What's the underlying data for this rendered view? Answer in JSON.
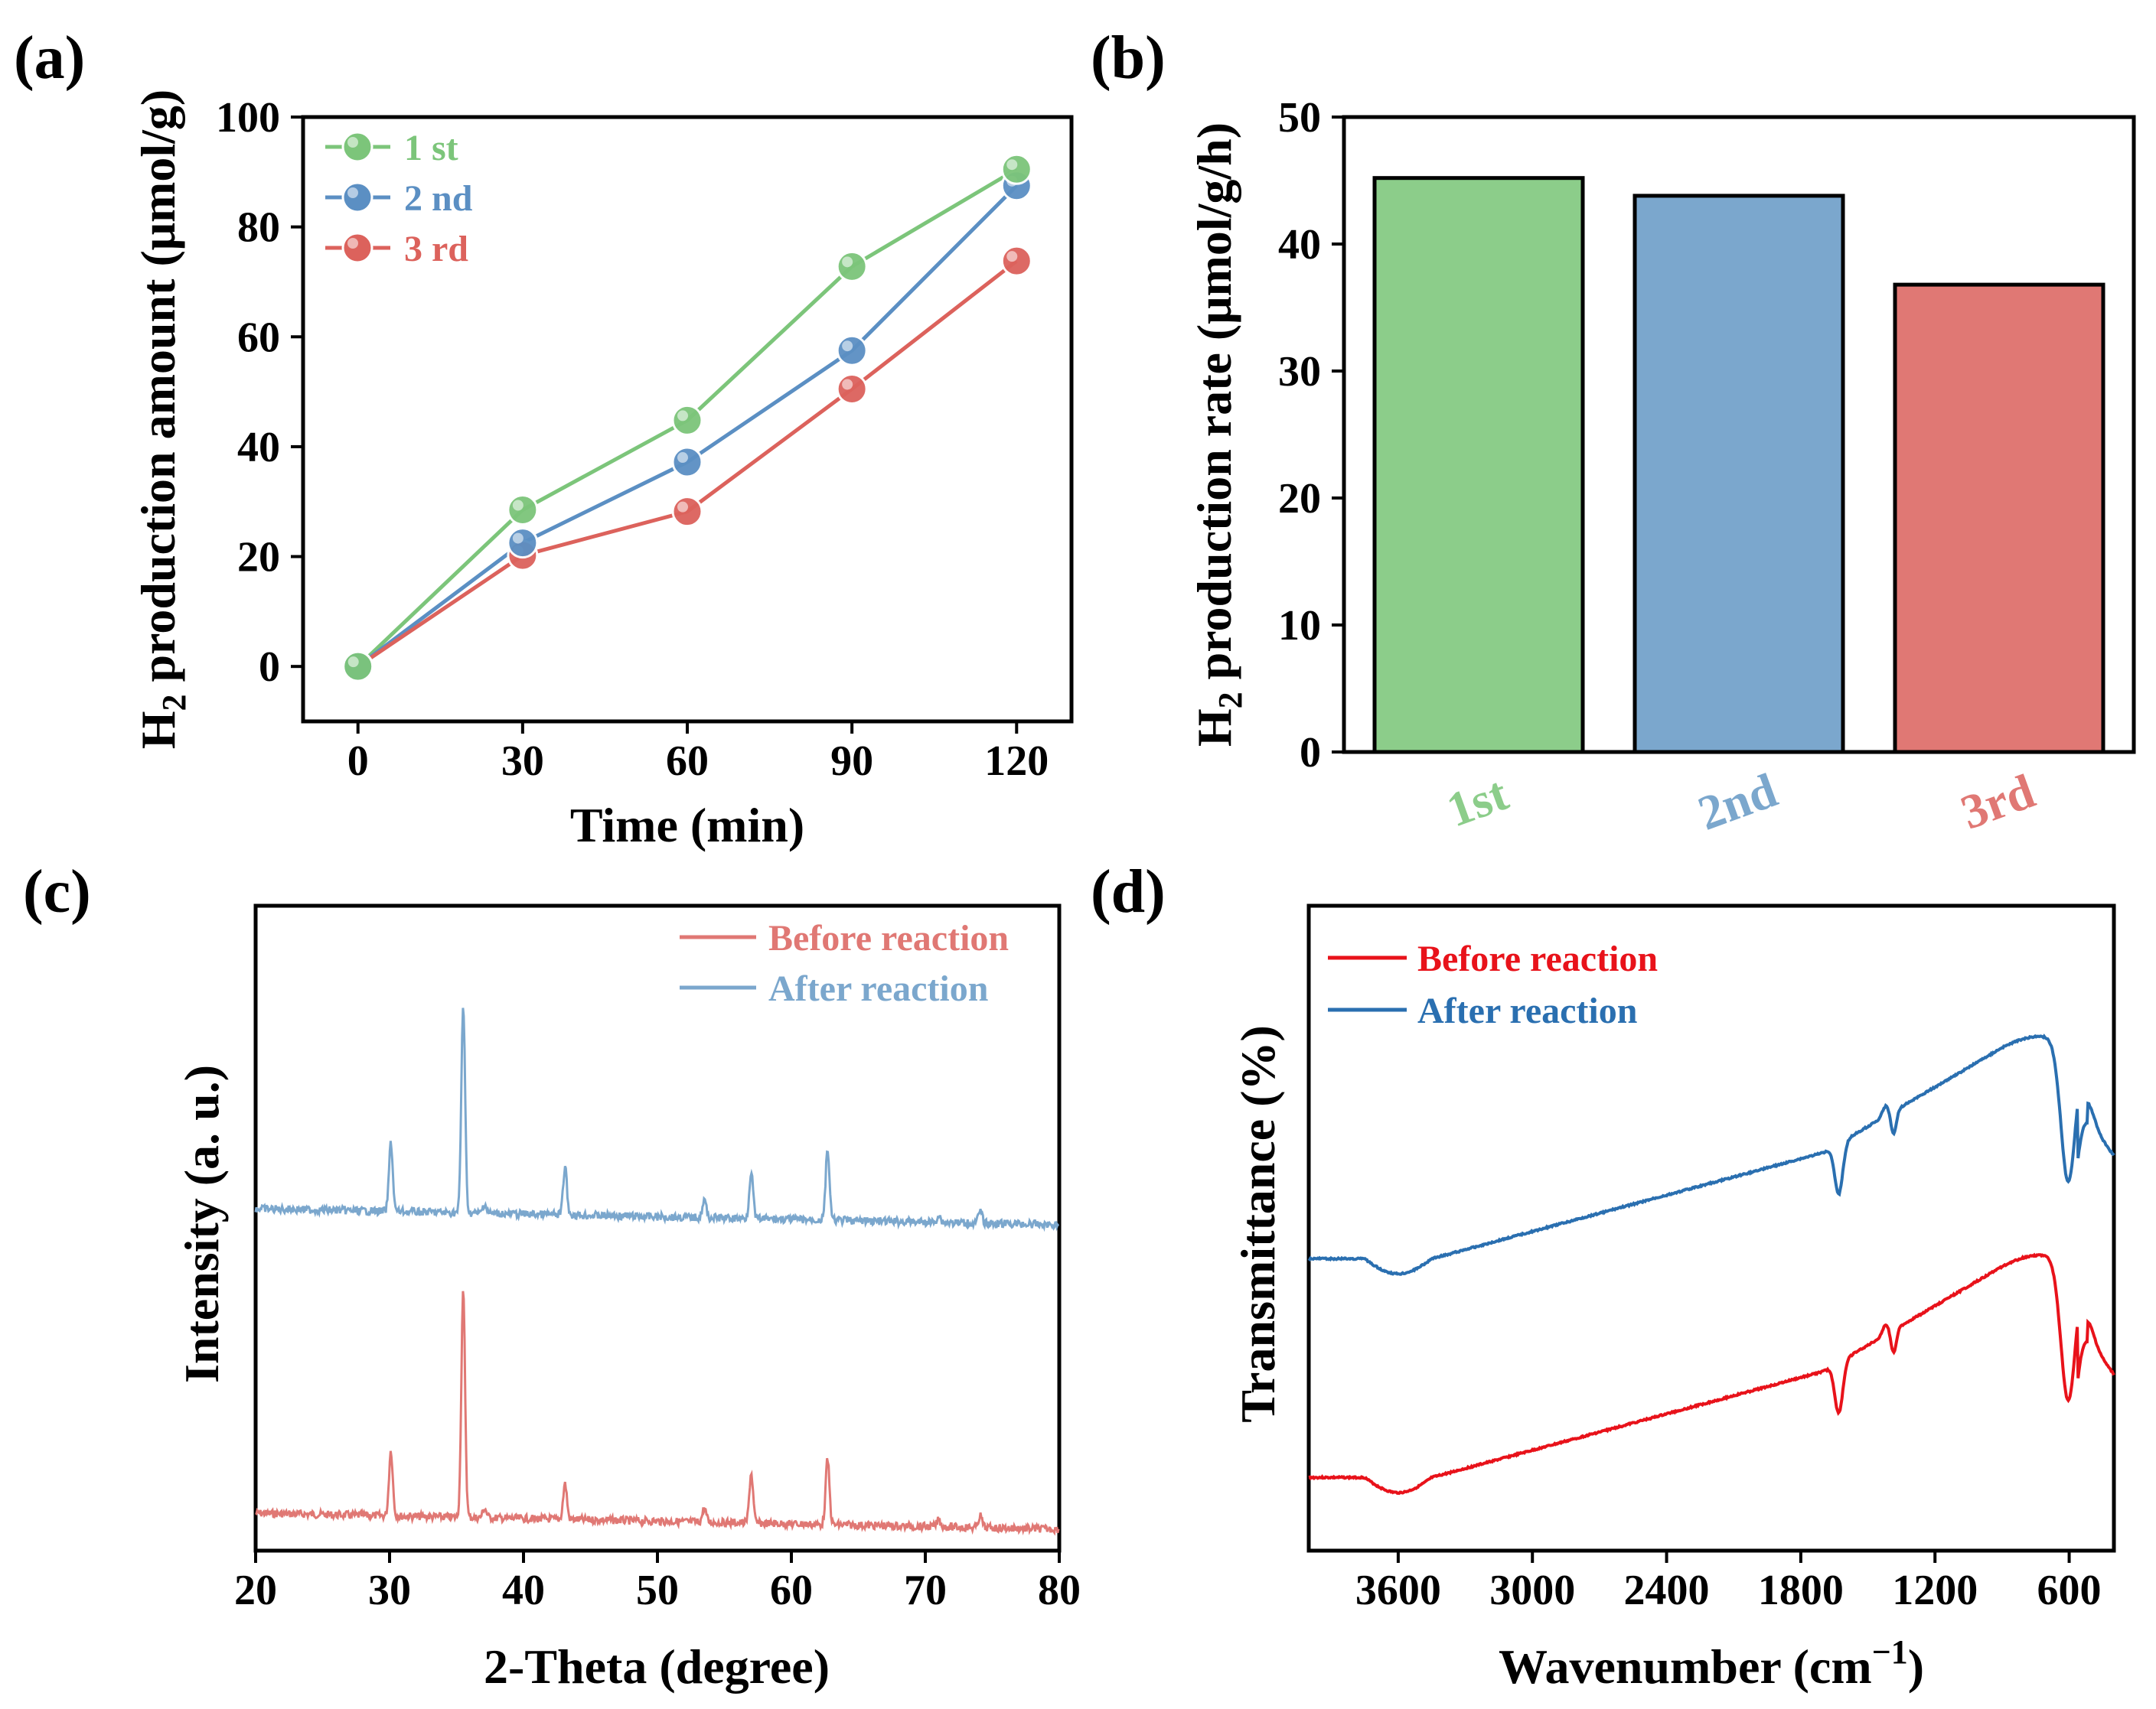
{
  "chart_data": [
    {
      "panel": "(a)",
      "type": "line",
      "xlabel": "Time (min)",
      "ylabel_main": "H",
      "ylabel_sub": "2",
      "ylabel_rest": " production amount (μmol/g)",
      "x": [
        0,
        30,
        60,
        90,
        120
      ],
      "xlim": [
        -10,
        130
      ],
      "ylim": [
        -10,
        100
      ],
      "xticks": [
        0,
        30,
        60,
        90,
        120
      ],
      "yticks": [
        0,
        20,
        40,
        60,
        80,
        100
      ],
      "legend_position": "top-left",
      "series": [
        {
          "name": "1 st",
          "color": "#7cc57a",
          "values": [
            0,
            28.5,
            44.8,
            72.8,
            90.5
          ]
        },
        {
          "name": "2 nd",
          "color": "#5b8fc3",
          "values": [
            0,
            22.5,
            37.2,
            57.5,
            87.5
          ]
        },
        {
          "name": "3 rd",
          "color": "#dc625c",
          "values": [
            0,
            20.2,
            28.2,
            50.5,
            73.8
          ]
        }
      ]
    },
    {
      "panel": "(b)",
      "type": "bar",
      "ylabel_main": "H",
      "ylabel_sub": "2",
      "ylabel_rest": " production rate (μmol/g/h)",
      "categories": [
        "1st",
        "2nd",
        "3rd"
      ],
      "category_colors": [
        "#8ccd8a",
        "#7ba7cd",
        "#e07874"
      ],
      "label_colors": [
        "#8ccd8a",
        "#7ba7cd",
        "#e07874"
      ],
      "values": [
        45.2,
        43.8,
        36.8
      ],
      "ylim": [
        0,
        50
      ],
      "yticks": [
        0,
        10,
        20,
        30,
        40,
        50
      ]
    },
    {
      "panel": "(c)",
      "type": "line",
      "xlabel": "2-Theta (degree)",
      "ylabel": "Intensity (a. u.)",
      "xlim": [
        20,
        80
      ],
      "xticks": [
        20,
        30,
        40,
        50,
        60,
        70,
        80
      ],
      "yticks_shown": false,
      "legend_position": "top-right",
      "peaks_degree": [
        30.1,
        35.5,
        37.1,
        43.1,
        53.5,
        57.0,
        62.7,
        71.0,
        74.1
      ],
      "series": [
        {
          "name": "Before reaction",
          "color": "#e07874",
          "offset": 0,
          "peak_heights": [
            55,
            190,
            8,
            30,
            12,
            42,
            55,
            6,
            10
          ]
        },
        {
          "name": "After reaction",
          "color": "#7ba7cd",
          "offset": 1,
          "peak_heights": [
            58,
            175,
            8,
            40,
            15,
            40,
            60,
            6,
            10
          ]
        }
      ]
    },
    {
      "panel": "(d)",
      "type": "line",
      "xlabel_main": "Wavenumber (cm",
      "xlabel_sup": "−1",
      "xlabel_close": ")",
      "ylabel": "Transmittance (%)",
      "xlim": [
        4000,
        400
      ],
      "xticks": [
        3600,
        3000,
        2400,
        1800,
        1200,
        600
      ],
      "yticks_shown": false,
      "legend_position": "top-left",
      "series": [
        {
          "name": "Before reaction",
          "color": "#e8121a",
          "offset": 0
        },
        {
          "name": "After reaction",
          "color": "#2a6fb0",
          "offset": 1
        }
      ]
    }
  ]
}
